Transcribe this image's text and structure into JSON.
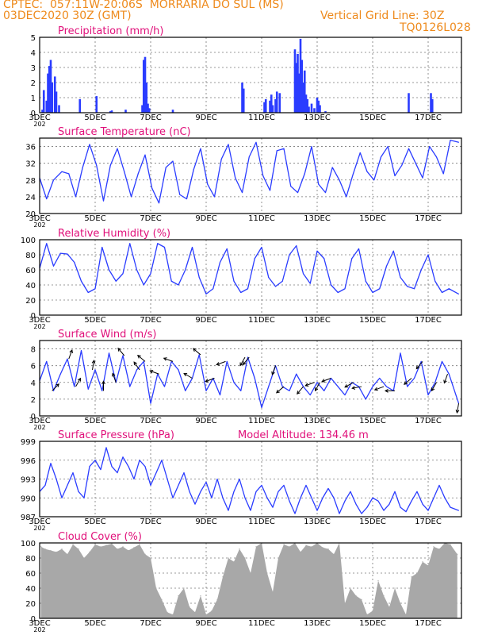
{
  "header": {
    "left_line1": "CPTEC:  057:11W-20:06S  MORRARIA DO SUL (MS)",
    "left_line2": "03DEC2020 30Z (GMT)",
    "right_line2": "Vertical Grid Line: 30Z",
    "right_line3": "TQ0126L028",
    "accent_color": "#ee8a1c",
    "title_color": "#e0107a",
    "series_color": "#2a3cff"
  },
  "x_axis": {
    "ticks": [
      "3DEC",
      "5DEC",
      "7DEC",
      "9DEC",
      "11DEC",
      "13DEC",
      "15DEC",
      "17DEC"
    ],
    "tick_days": [
      3,
      5,
      7,
      9,
      11,
      13,
      15,
      17
    ],
    "range_days": [
      3,
      18.2
    ],
    "stub_label": "202"
  },
  "chart_data": [
    {
      "id": "precipitation",
      "type": "bar",
      "title": "Precipitation (mm/h)",
      "ylim": [
        0,
        5
      ],
      "yticks": [
        0,
        1,
        2,
        3,
        4,
        5
      ],
      "grid": true,
      "x": [
        3.1,
        3.15,
        3.25,
        3.3,
        3.35,
        3.4,
        3.45,
        3.55,
        3.6,
        3.7,
        4.45,
        5.05,
        5.55,
        5.6,
        6.1,
        6.7,
        6.75,
        6.8,
        6.85,
        6.9,
        6.95,
        7.8,
        10.3,
        10.35,
        11.1,
        11.15,
        11.3,
        11.35,
        11.4,
        11.5,
        11.55,
        11.65,
        12.2,
        12.25,
        12.3,
        12.35,
        12.4,
        12.45,
        12.5,
        12.55,
        12.6,
        12.65,
        12.7,
        12.8,
        12.9,
        13.0,
        13.05,
        13.1,
        13.3,
        16.3,
        17.1,
        17.15
      ],
      "values": [
        0.2,
        1.5,
        0.8,
        2.6,
        3.1,
        3.5,
        2.0,
        2.4,
        1.4,
        0.5,
        0.9,
        1.1,
        0.1,
        0.15,
        0.2,
        0.5,
        3.5,
        3.7,
        2.0,
        0.6,
        0.3,
        0.2,
        2.0,
        1.6,
        0.7,
        0.9,
        0.8,
        1.2,
        0.5,
        0.9,
        1.4,
        1.3,
        4.2,
        3.3,
        3.9,
        2.6,
        4.9,
        3.5,
        2.0,
        2.8,
        1.2,
        0.9,
        0.4,
        0.6,
        0.3,
        1.0,
        0.8,
        0.5,
        0.1,
        1.3,
        1.3,
        0.9
      ]
    },
    {
      "id": "temperature",
      "type": "line",
      "title": "Surface Temperature (nC)",
      "ylim": [
        20,
        38
      ],
      "yticks": [
        20,
        24,
        28,
        32,
        36
      ],
      "grid": true,
      "x": [
        3.0,
        3.25,
        3.5,
        3.8,
        4.05,
        4.3,
        4.55,
        4.8,
        5.05,
        5.3,
        5.55,
        5.8,
        6.05,
        6.3,
        6.55,
        6.8,
        7.05,
        7.3,
        7.55,
        7.8,
        8.05,
        8.3,
        8.55,
        8.8,
        9.05,
        9.3,
        9.55,
        9.8,
        10.05,
        10.3,
        10.55,
        10.8,
        11.05,
        11.3,
        11.55,
        11.8,
        12.05,
        12.3,
        12.55,
        12.8,
        13.05,
        13.3,
        13.55,
        13.8,
        14.05,
        14.3,
        14.55,
        14.8,
        15.05,
        15.3,
        15.55,
        15.8,
        16.05,
        16.3,
        16.55,
        16.8,
        17.05,
        17.3,
        17.55,
        17.8,
        18.1
      ],
      "values": [
        28.5,
        23.5,
        28.0,
        30.0,
        29.5,
        24.0,
        31.0,
        36.5,
        31.5,
        23.0,
        31.5,
        35.5,
        30.0,
        24.0,
        29.5,
        34.0,
        26.0,
        22.5,
        31.0,
        32.5,
        24.5,
        23.5,
        30.5,
        35.5,
        27.0,
        24.0,
        33.0,
        36.5,
        28.5,
        25.0,
        33.5,
        37.0,
        29.0,
        25.5,
        35.0,
        35.5,
        26.5,
        25.0,
        29.5,
        36.0,
        27.0,
        25.0,
        31.0,
        28.0,
        24.0,
        29.5,
        34.5,
        30.0,
        28.0,
        33.5,
        36.0,
        29.0,
        31.5,
        35.5,
        32.0,
        28.5,
        36.0,
        33.5,
        29.5,
        37.5,
        37.0
      ]
    },
    {
      "id": "humidity",
      "type": "line",
      "title": "Relative Humidity (%)",
      "ylim": [
        0,
        100
      ],
      "yticks": [
        0,
        20,
        40,
        60,
        80,
        100
      ],
      "grid": true,
      "x": [
        3.0,
        3.25,
        3.5,
        3.75,
        4.0,
        4.25,
        4.5,
        4.75,
        5.0,
        5.25,
        5.5,
        5.75,
        6.0,
        6.25,
        6.5,
        6.75,
        7.0,
        7.25,
        7.5,
        7.75,
        8.0,
        8.25,
        8.5,
        8.75,
        9.0,
        9.25,
        9.5,
        9.75,
        10.0,
        10.25,
        10.5,
        10.75,
        11.0,
        11.25,
        11.5,
        11.75,
        12.0,
        12.25,
        12.5,
        12.75,
        13.0,
        13.25,
        13.5,
        13.75,
        14.0,
        14.25,
        14.5,
        14.75,
        15.0,
        15.25,
        15.5,
        15.75,
        16.0,
        16.25,
        16.5,
        16.75,
        17.0,
        17.25,
        17.5,
        17.75,
        18.1
      ],
      "values": [
        62,
        95,
        65,
        82,
        81,
        70,
        45,
        30,
        35,
        90,
        60,
        45,
        55,
        95,
        60,
        40,
        55,
        95,
        90,
        45,
        40,
        60,
        90,
        50,
        28,
        35,
        70,
        88,
        45,
        30,
        35,
        75,
        90,
        50,
        38,
        45,
        80,
        92,
        55,
        42,
        85,
        75,
        40,
        30,
        35,
        75,
        88,
        45,
        30,
        35,
        65,
        85,
        50,
        38,
        35,
        60,
        80,
        45,
        30,
        35,
        28
      ]
    },
    {
      "id": "wind",
      "type": "line",
      "title": "Surface Wind (m/s)",
      "ylim": [
        0,
        9
      ],
      "yticks": [
        0,
        2,
        4,
        6,
        8
      ],
      "grid": true,
      "x": [
        3.0,
        3.25,
        3.5,
        3.75,
        4.0,
        4.25,
        4.5,
        4.75,
        5.0,
        5.25,
        5.5,
        5.75,
        6.0,
        6.25,
        6.5,
        6.75,
        7.0,
        7.25,
        7.5,
        7.75,
        8.0,
        8.25,
        8.5,
        8.75,
        9.0,
        9.25,
        9.5,
        9.75,
        10.0,
        10.25,
        10.5,
        10.75,
        11.0,
        11.25,
        11.5,
        11.75,
        12.0,
        12.25,
        12.5,
        12.75,
        13.0,
        13.25,
        13.5,
        13.75,
        14.0,
        14.25,
        14.5,
        14.75,
        15.0,
        15.25,
        15.5,
        15.75,
        16.0,
        16.25,
        16.5,
        16.75,
        17.0,
        17.25,
        17.5,
        17.75,
        18.1
      ],
      "values": [
        4.2,
        6.5,
        3.0,
        5.0,
        6.8,
        3.5,
        7.8,
        3.2,
        5.5,
        3.0,
        7.5,
        4.0,
        7.2,
        3.5,
        5.5,
        6.5,
        1.5,
        5.0,
        3.5,
        6.5,
        5.5,
        3.0,
        4.5,
        7.3,
        3.0,
        4.5,
        2.5,
        6.5,
        4.0,
        3.0,
        7.0,
        4.5,
        1.0,
        3.5,
        6.0,
        3.5,
        3.0,
        5.0,
        3.5,
        2.5,
        4.0,
        3.0,
        4.5,
        3.5,
        2.5,
        4.0,
        3.5,
        2.0,
        3.5,
        4.5,
        3.5,
        3.0,
        7.5,
        3.5,
        4.5,
        6.5,
        2.5,
        4.0,
        6.5,
        5.0,
        1.5
      ],
      "arrow_days": [
        3.45,
        4.05,
        4.3,
        4.9,
        5.3,
        5.75,
        6.05,
        6.6,
        6.8,
        7.3,
        7.8,
        8.5,
        8.8,
        9.3,
        9.7,
        10.4,
        10.55,
        11.5,
        11.8,
        12.5,
        12.9,
        13.1,
        13.5,
        14.3,
        14.6,
        15.4,
        15.8,
        16.4,
        16.8,
        17.3,
        17.7,
        18.1
      ],
      "arrow_dirs": [
        45,
        70,
        60,
        80,
        90,
        110,
        130,
        125,
        140,
        160,
        160,
        150,
        140,
        200,
        200,
        240,
        230,
        250,
        220,
        230,
        200,
        240,
        200,
        210,
        190,
        200,
        180,
        220,
        230,
        240,
        250,
        260
      ]
    },
    {
      "id": "pressure",
      "type": "line",
      "title": "Surface Pressure (hPa)",
      "annotation": "Model Altitude: 134.46 m",
      "ylim": [
        987,
        999
      ],
      "yticks": [
        987,
        990,
        993,
        996,
        999
      ],
      "grid": true,
      "x": [
        3.0,
        3.2,
        3.4,
        3.6,
        3.8,
        4.0,
        4.2,
        4.4,
        4.6,
        4.8,
        5.0,
        5.2,
        5.4,
        5.6,
        5.8,
        6.0,
        6.2,
        6.4,
        6.6,
        6.8,
        7.0,
        7.2,
        7.4,
        7.6,
        7.8,
        8.0,
        8.2,
        8.4,
        8.6,
        8.8,
        9.0,
        9.2,
        9.4,
        9.6,
        9.8,
        10.0,
        10.2,
        10.4,
        10.6,
        10.8,
        11.0,
        11.2,
        11.4,
        11.6,
        11.8,
        12.0,
        12.2,
        12.4,
        12.6,
        12.8,
        13.0,
        13.2,
        13.4,
        13.6,
        13.8,
        14.0,
        14.2,
        14.4,
        14.6,
        14.8,
        15.0,
        15.2,
        15.4,
        15.6,
        15.8,
        16.0,
        16.2,
        16.4,
        16.6,
        16.8,
        17.0,
        17.2,
        17.4,
        17.6,
        17.8,
        18.1
      ],
      "values": [
        991,
        992,
        995.5,
        993,
        990,
        992,
        994,
        991,
        990,
        995,
        996,
        994.5,
        998,
        995,
        994,
        996.5,
        995,
        993,
        996,
        995,
        992,
        994,
        996,
        993,
        990,
        992,
        994,
        991,
        989,
        991,
        992.5,
        990,
        993,
        990,
        988,
        991,
        993,
        990,
        988,
        991,
        992,
        990,
        988.5,
        991,
        992,
        989.5,
        987.5,
        990,
        992,
        990,
        988,
        990,
        991.5,
        990,
        987.5,
        989.5,
        991,
        989,
        987.5,
        988.5,
        990,
        989.5,
        988,
        989,
        991,
        988.5,
        987.8,
        989.5,
        991,
        989,
        988,
        990,
        992,
        990,
        988.5,
        988
      ]
    },
    {
      "id": "cloud",
      "type": "area",
      "title": "Cloud Cover (%)",
      "ylim": [
        0,
        100
      ],
      "yticks": [
        0,
        20,
        40,
        60,
        80,
        100
      ],
      "grid": true,
      "x": [
        3.05,
        3.2,
        3.4,
        3.6,
        3.8,
        4.0,
        4.2,
        4.4,
        4.6,
        4.8,
        5.0,
        5.2,
        5.4,
        5.6,
        5.8,
        6.0,
        6.2,
        6.4,
        6.6,
        6.8,
        7.0,
        7.2,
        7.4,
        7.6,
        7.8,
        8.0,
        8.2,
        8.4,
        8.6,
        8.8,
        9.0,
        9.2,
        9.4,
        9.6,
        9.8,
        10.0,
        10.2,
        10.4,
        10.6,
        10.8,
        11.0,
        11.2,
        11.4,
        11.6,
        11.8,
        12.0,
        12.2,
        12.4,
        12.6,
        12.8,
        13.0,
        13.2,
        13.4,
        13.6,
        13.8,
        14.0,
        14.2,
        14.4,
        14.6,
        14.8,
        15.0,
        15.2,
        15.4,
        15.6,
        15.8,
        16.0,
        16.2,
        16.4,
        16.6,
        16.8,
        17.0,
        17.2,
        17.4,
        17.6,
        17.8,
        18.05
      ],
      "values": [
        95,
        92,
        90,
        88,
        92,
        85,
        98,
        92,
        80,
        88,
        98,
        95,
        97,
        99,
        92,
        95,
        90,
        94,
        98,
        85,
        80,
        40,
        25,
        8,
        5,
        30,
        40,
        15,
        8,
        30,
        5,
        10,
        25,
        55,
        80,
        75,
        92,
        80,
        60,
        95,
        100,
        60,
        35,
        80,
        98,
        95,
        100,
        88,
        97,
        95,
        100,
        94,
        92,
        85,
        100,
        20,
        40,
        30,
        25,
        5,
        10,
        50,
        30,
        15,
        40,
        20,
        5,
        55,
        60,
        75,
        70,
        95,
        92,
        100,
        98,
        85
      ]
    }
  ]
}
